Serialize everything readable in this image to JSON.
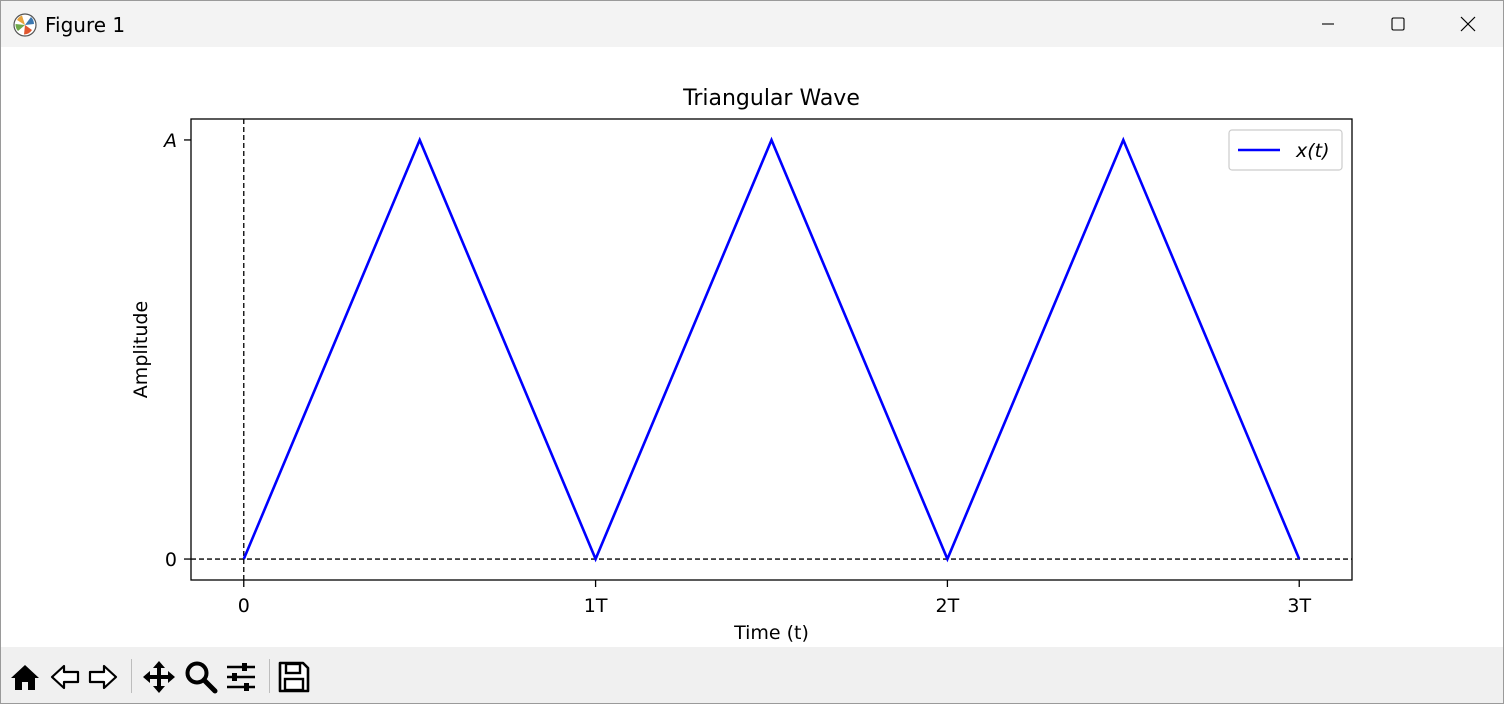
{
  "window": {
    "title": "Figure 1",
    "controls": {
      "minimize": "minimize-icon",
      "maximize": "maximize-icon",
      "close": "close-icon"
    }
  },
  "toolbar": {
    "tools": [
      {
        "name": "home",
        "icon": "home-icon"
      },
      {
        "name": "back",
        "icon": "back-arrow-icon"
      },
      {
        "name": "forward",
        "icon": "forward-arrow-icon"
      },
      {
        "name": "pan",
        "icon": "move-icon"
      },
      {
        "name": "zoom",
        "icon": "zoom-icon"
      },
      {
        "name": "configure-subplots",
        "icon": "sliders-icon"
      },
      {
        "name": "save",
        "icon": "save-icon"
      }
    ]
  },
  "chart_data": {
    "type": "line",
    "title": "Triangular Wave",
    "xlabel": "Time (t)",
    "ylabel": "Amplitude",
    "x_unit_label": "T",
    "xlim": [
      -0.15,
      3.15
    ],
    "ylim": [
      -0.05,
      1.05
    ],
    "xticks": [
      0,
      1,
      2,
      3
    ],
    "xtick_labels": [
      "0",
      "1T",
      "2T",
      "3T"
    ],
    "yticks": [
      0,
      1
    ],
    "ytick_labels": [
      "0",
      "A"
    ],
    "grid": false,
    "legend_position": "top-right",
    "reference_lines": [
      {
        "axis": "x",
        "value": 0,
        "style": "dashed",
        "color": "#000000"
      },
      {
        "axis": "y",
        "value": 0,
        "style": "dashed",
        "color": "#000000"
      }
    ],
    "series": [
      {
        "name": "x(t)",
        "color": "#0000ff",
        "x": [
          0,
          0.5,
          1,
          1.5,
          2,
          2.5,
          3
        ],
        "y": [
          0,
          1,
          0,
          1,
          0,
          1,
          0
        ]
      }
    ]
  }
}
